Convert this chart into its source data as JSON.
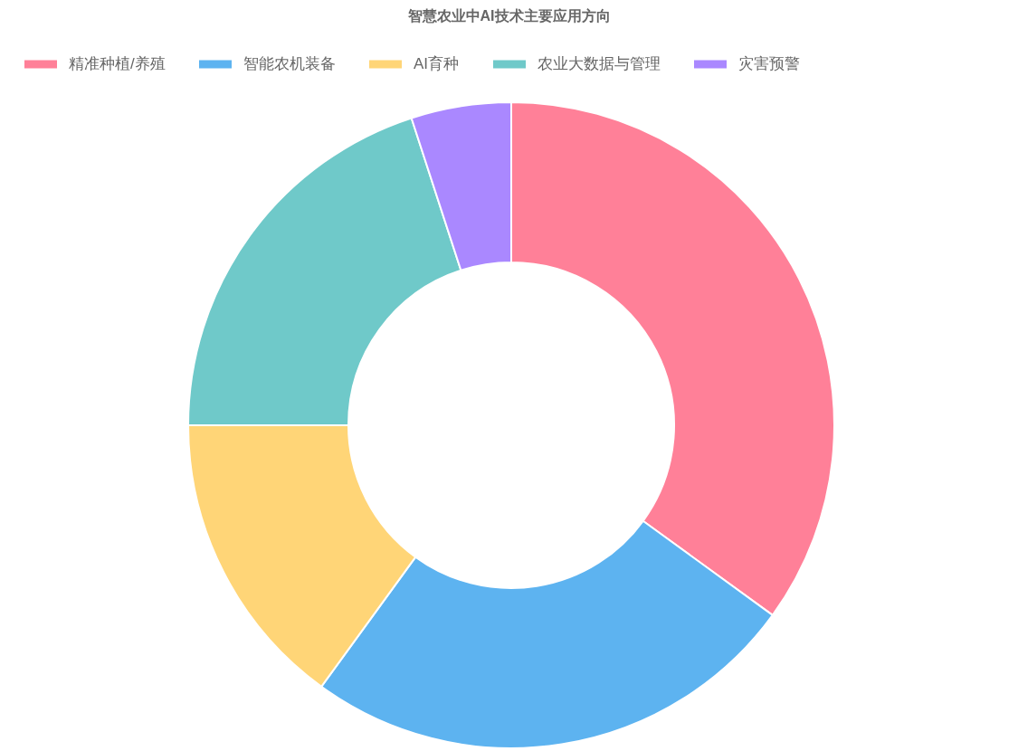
{
  "chart_data": {
    "type": "donut",
    "title": "智慧农业中AI技术主要应用方向",
    "categories": [
      "精准种植/养殖",
      "智能农机装备",
      "AI育种",
      "农业大数据与管理",
      "灾害预警"
    ],
    "values": [
      35,
      25,
      15,
      20,
      5
    ],
    "colors": [
      "#ff8098",
      "#5db3f0",
      "#ffd577",
      "#6fc9c9",
      "#aa88ff"
    ],
    "legend": "top"
  }
}
